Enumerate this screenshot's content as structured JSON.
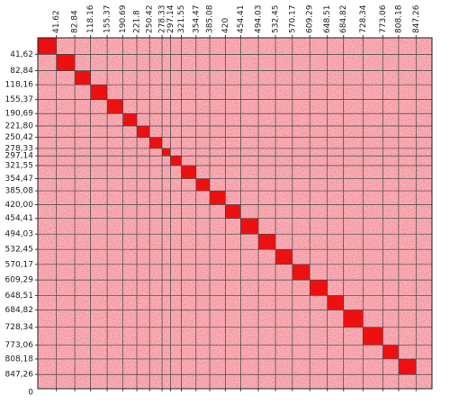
{
  "chart_data": {
    "type": "heatmap",
    "xticks": [
      41.62,
      82.84,
      118.16,
      155.37,
      190.69,
      221.8,
      250.42,
      278.33,
      297.14,
      321.55,
      354.47,
      385.08,
      420.0,
      454.41,
      494.03,
      532.45,
      570.17,
      609.29,
      648.51,
      684.82,
      728.34,
      773.06,
      808.18,
      847.26
    ],
    "yticks": [
      {
        "value": 41.62,
        "label": "41,62"
      },
      {
        "value": 82.84,
        "label": "82,84"
      },
      {
        "value": 118.16,
        "label": "118,16"
      },
      {
        "value": 155.37,
        "label": "155,37"
      },
      {
        "value": 190.69,
        "label": "190,69"
      },
      {
        "value": 221.8,
        "label": "221,80"
      },
      {
        "value": 250.42,
        "label": "250,42"
      },
      {
        "value": 278.33,
        "label": "278,33"
      },
      {
        "value": 297.14,
        "label": "297,14"
      },
      {
        "value": 321.55,
        "label": "321,55"
      },
      {
        "value": 354.47,
        "label": "354,47"
      },
      {
        "value": 385.08,
        "label": "385,08"
      },
      {
        "value": 420.0,
        "label": "420,00"
      },
      {
        "value": 454.41,
        "label": "454,41"
      },
      {
        "value": 494.03,
        "label": "494,03"
      },
      {
        "value": 532.45,
        "label": "532,45"
      },
      {
        "value": 570.17,
        "label": "570,17"
      },
      {
        "value": 609.29,
        "label": "609,29"
      },
      {
        "value": 648.51,
        "label": "648,51"
      },
      {
        "value": 684.82,
        "label": "684,82"
      },
      {
        "value": 728.34,
        "label": "728,34"
      },
      {
        "value": 773.06,
        "label": "773,06"
      },
      {
        "value": 808.18,
        "label": "808,18"
      },
      {
        "value": 847.26,
        "label": "847,26"
      }
    ],
    "xlim": [
      0,
      883
    ],
    "ylim": [
      0,
      883
    ],
    "y_end_label": "0",
    "grid": true,
    "block_color": "#ee1010",
    "background_color": "#f7c3c7",
    "grid_color": "#444444"
  }
}
